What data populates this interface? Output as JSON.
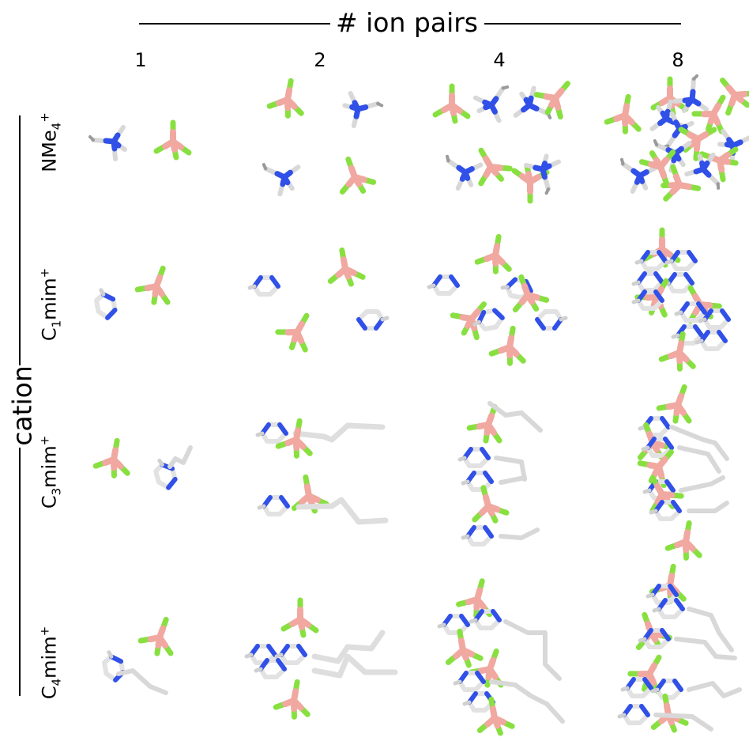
{
  "top_axis_title": "# ion pairs",
  "side_axis_title": "cation",
  "columns": [
    "1",
    "2",
    "4",
    "8"
  ],
  "rows": [
    {
      "base": "NMe",
      "sub": "4",
      "sup": "+"
    },
    {
      "base": "C",
      "sub": "1",
      "rest": "mim",
      "sup": "+"
    },
    {
      "base": "C",
      "sub": "3",
      "rest": "mim",
      "sup": "+"
    },
    {
      "base": "C",
      "sub": "4",
      "rest": "mim",
      "sup": "+"
    }
  ],
  "colors": {
    "nitrogen": "#3050e8",
    "boron": "#f0a8a0",
    "fluorine": "#88e040",
    "carbon": "#d8d8d8"
  }
}
